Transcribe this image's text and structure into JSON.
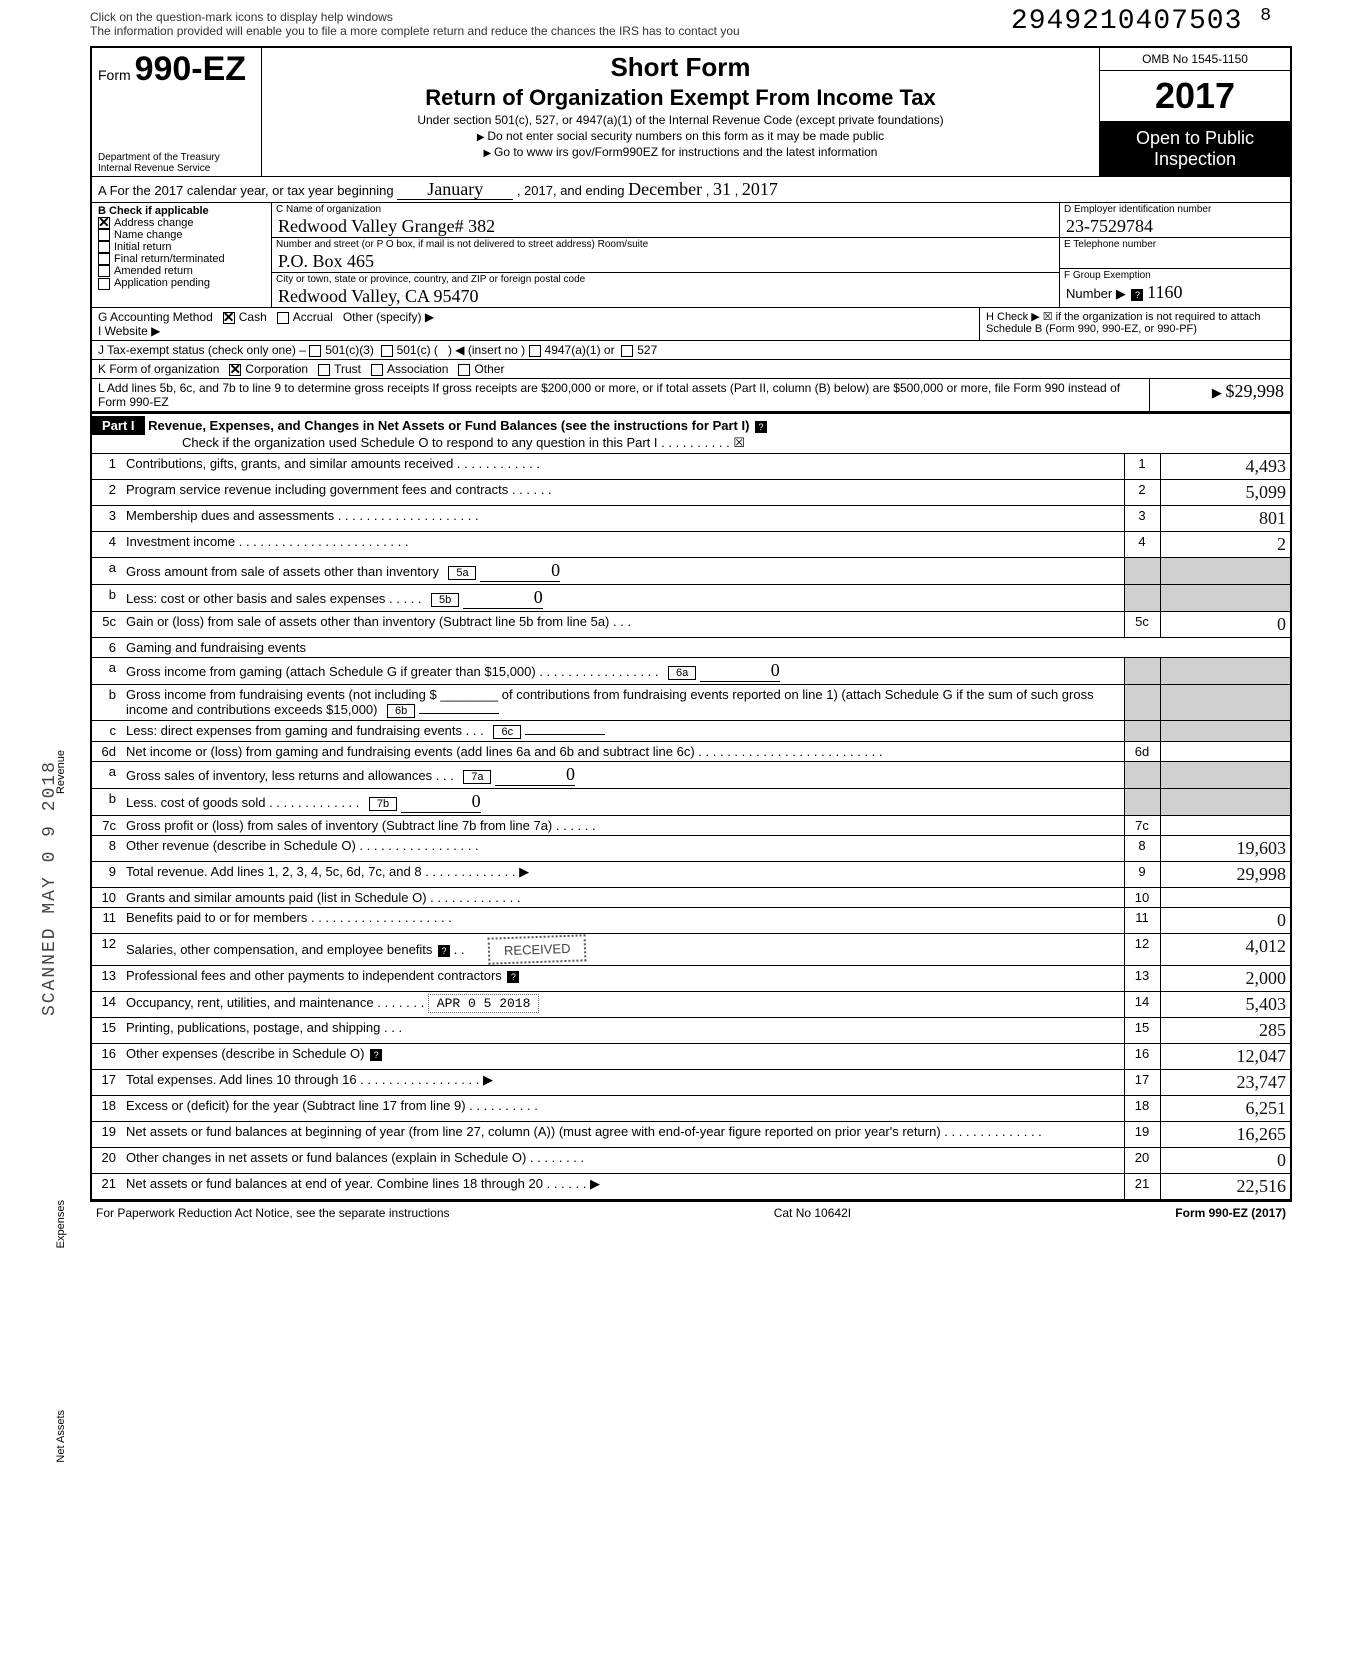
{
  "top_hint_l1": "Click on the question-mark icons to display help windows",
  "top_hint_l2": "The information provided will enable you to file a more complete return and reduce the chances the IRS has to contact you",
  "stamp_number": "294921040750",
  "stamp_digit": "3",
  "stamp_minus": "8",
  "form_prefix": "Form",
  "form_number": "990-EZ",
  "dept": "Department of the Treasury\nInternal Revenue Service",
  "h1": "Short Form",
  "h2": "Return of Organization Exempt From Income Tax",
  "under": "Under section 501(c), 527, or 4947(a)(1) of the Internal Revenue Code (except private foundations)",
  "warn": "Do not enter social security numbers on this form as it may be made public",
  "goto": "Go to www irs gov/Form990EZ for instructions and the latest information",
  "omb": "OMB No 1545-1150",
  "year": "2017",
  "inspect": "Open to Public Inspection",
  "cal_a": "A For the 2017 calendar year, or tax year beginning",
  "cal_begin": "January",
  "cal_mid": ", 2017, and ending",
  "cal_end_m": "December",
  "cal_end_d": "31",
  "cal_end_y": "2017",
  "b_header": "B Check if applicable",
  "b_items": [
    "Address change",
    "Name change",
    "Initial return",
    "Final return/terminated",
    "Amended return",
    "Application pending"
  ],
  "b_checked": [
    true,
    false,
    false,
    false,
    false,
    false
  ],
  "c_lbl": "C Name of organization",
  "c_name": "Redwood Valley Grange# 382",
  "addr_lbl": "Number and street (or P O box, if mail is not delivered to street address)          Room/suite",
  "addr_val": "P.O. Box 465",
  "city_lbl": "City or town, state or province, country, and ZIP or foreign postal code",
  "city_val": "Redwood Valley, CA 95470",
  "d_lbl": "D Employer identification number",
  "d_val": "23-7529784",
  "e_lbl": "E Telephone number",
  "f_lbl": "F Group Exemption",
  "f_num_lbl": "Number ▶",
  "f_val": "1160",
  "g": "G Accounting Method",
  "g_cash": "Cash",
  "g_accrual": "Accrual",
  "g_other": "Other (specify) ▶",
  "h": "H Check ▶ ☒ if the organization is not required to attach Schedule B (Form 990, 990-EZ, or 990-PF)",
  "i": "I  Website ▶",
  "j": "J Tax-exempt status (check only one) –",
  "j_5013": "501(c)(3)",
  "j_501c": "501(c) (",
  "j_ins": ") ◀ (insert no )",
  "j_4947": "4947(a)(1) or",
  "j_527": "527",
  "k": "K Form of organization",
  "k_corp": "Corporation",
  "k_trust": "Trust",
  "k_assoc": "Association",
  "k_other": "Other",
  "l": "L Add lines 5b, 6c, and 7b to line 9 to determine gross receipts If gross receipts are $200,000 or more, or if total assets (Part II, column (B) below) are $500,000 or more, file Form 990 instead of Form 990-EZ",
  "l_amount": "$29,998",
  "part1": "Part I",
  "part1_title": "Revenue, Expenses, and Changes in Net Assets or Fund Balances (see the instructions for Part I)",
  "part1_check": "Check if the organization used Schedule O to respond to any question in this Part I . . . . . . . . . . ☒",
  "lines": {
    "1": {
      "d": "Contributions, gifts, grants, and similar amounts received . . . . . . . . . . . .",
      "a": "4,493"
    },
    "2": {
      "d": "Program service revenue including government fees and contracts . . . . . .",
      "a": "5,099"
    },
    "3": {
      "d": "Membership dues and assessments . . . . . . . . . . . . . . . . . . . .",
      "a": "801"
    },
    "4": {
      "d": "Investment income . . . . . . . . . . . . . . . . . . . . . . . .",
      "a": "2"
    },
    "5a": {
      "d": "Gross amount from sale of assets other than inventory",
      "ib": "5a",
      "iv": "0"
    },
    "5b": {
      "d": "Less: cost or other basis and sales expenses . . . . .",
      "ib": "5b",
      "iv": "0"
    },
    "5c": {
      "d": "Gain or (loss) from sale of assets other than inventory (Subtract line 5b from line 5a) . . .",
      "a": "0"
    },
    "6": {
      "d": "Gaming and fundraising events"
    },
    "6a": {
      "d": "Gross income from gaming (attach Schedule G if greater than $15,000) . . . . . . . . . . . . . . . . .",
      "ib": "6a",
      "iv": "0"
    },
    "6b": {
      "d": "Gross income from fundraising events (not including $ ________ of contributions from fundraising events reported on line 1) (attach Schedule G if the sum of such gross income and contributions exceeds $15,000)",
      "ib": "6b"
    },
    "6c": {
      "d": "Less: direct expenses from gaming and fundraising events . . .",
      "ib": "6c"
    },
    "6d": {
      "d": "Net income or (loss) from gaming and fundraising events (add lines 6a and 6b and subtract line 6c) . . . . . . . . . . . . . . . . . . . . . . . . . .",
      "a": ""
    },
    "7a": {
      "d": "Gross sales of inventory, less returns and allowances . . .",
      "ib": "7a",
      "iv": "0"
    },
    "7b": {
      "d": "Less. cost of goods sold . . . . . . . . . . . . .",
      "ib": "7b",
      "iv": "0"
    },
    "7c": {
      "d": "Gross profit or (loss) from sales of inventory (Subtract line 7b from line 7a) . . . . . .",
      "a": ""
    },
    "8": {
      "d": "Other revenue (describe in Schedule O) . . . . . . . . . . . . . . . . .",
      "a": "19,603"
    },
    "9": {
      "d": "Total revenue. Add lines 1, 2, 3, 4, 5c, 6d, 7c, and 8 . . . . . . . . . . . . . ▶",
      "a": "29,998"
    },
    "10": {
      "d": "Grants and similar amounts paid (list in Schedule O) . . . . . . . . . . . . .",
      "a": ""
    },
    "11": {
      "d": "Benefits paid to or for members . . . . . . . . . . . . . . . . . . . .",
      "a": "0"
    },
    "12": {
      "d": "Salaries, other compensation, and employee benefits",
      "a": "4,012"
    },
    "13": {
      "d": "Professional fees and other payments to independent contractors",
      "a": "2,000"
    },
    "14": {
      "d": "Occupancy, rent, utilities, and maintenance . . . .",
      "a": "5,403"
    },
    "15": {
      "d": "Printing, publications, postage, and shipping . . .",
      "a": "285"
    },
    "16": {
      "d": "Other expenses (describe in Schedule O)",
      "a": "12,047"
    },
    "17": {
      "d": "Total expenses. Add lines 10 through 16 . . . . . . . . . . . . . . . . . ▶",
      "a": "23,747"
    },
    "18": {
      "d": "Excess or (deficit) for the year (Subtract line 17 from line 9) . . . . . . . . . .",
      "a": "6,251"
    },
    "19": {
      "d": "Net assets or fund balances at beginning of year (from line 27, column (A)) (must agree with end-of-year figure reported on prior year's return) . . . . . . . . . . . . . .",
      "a": "16,265"
    },
    "20": {
      "d": "Other changes in net assets or fund balances (explain in Schedule O) . . . . . . . .",
      "a": "0"
    },
    "21": {
      "d": "Net assets or fund balances at end of year. Combine lines 18 through 20 . . . . . . ▶",
      "a": "22,516"
    }
  },
  "received_stamp": "RECEIVED",
  "apr_stamp": "APR 0 5 2018",
  "scan_stamp": "SCANNED MAY 0 9 2018",
  "footer_l": "For Paperwork Reduction Act Notice, see the separate instructions",
  "footer_c": "Cat No 10642I",
  "footer_r": "Form 990-EZ (2017)"
}
